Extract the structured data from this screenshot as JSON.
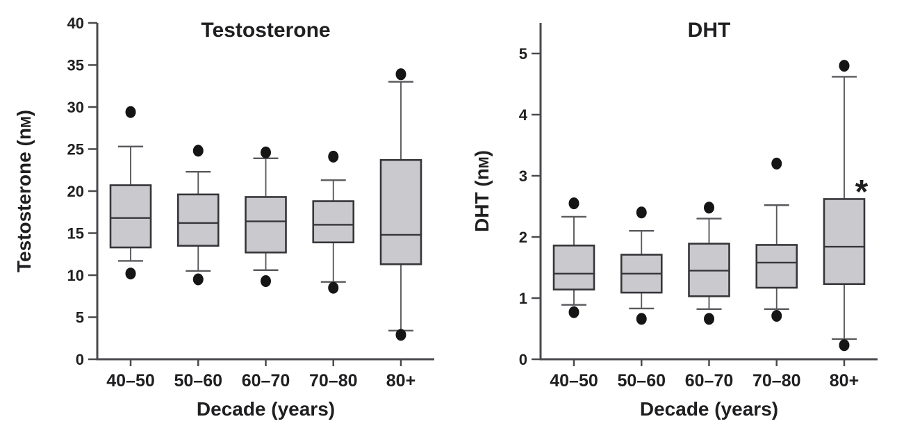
{
  "figure": {
    "background": "#ffffff"
  },
  "colors": {
    "box_fill": "#cacace",
    "box_stroke": "#35353a",
    "median_stroke": "#35353a",
    "whisker_stroke": "#5a5a5e",
    "axis_stroke": "#4a4a4e",
    "dot_fill": "#151515",
    "text": "#1f1f21"
  },
  "chart_data": [
    {
      "type": "boxplot",
      "title": "Testosterone",
      "ylabel": "Testosterone (nM)",
      "ylabel_unit_smallcap": true,
      "xlabel": "Decade (years)",
      "categories": [
        "40–50",
        "50–60",
        "60–70",
        "70–80",
        "80+"
      ],
      "ylim": [
        0,
        40
      ],
      "yticks": [
        0,
        5,
        10,
        15,
        20,
        25,
        30,
        35,
        40
      ],
      "grid": false,
      "boxes": [
        {
          "category": "40–50",
          "upper_outlier": 29.4,
          "whisker_high": 25.3,
          "q3": 20.7,
          "median": 16.8,
          "q1": 13.3,
          "whisker_low": 11.7,
          "lower_outlier": 10.2
        },
        {
          "category": "50–60",
          "upper_outlier": 24.8,
          "whisker_high": 22.3,
          "q3": 19.6,
          "median": 16.2,
          "q1": 13.5,
          "whisker_low": 10.5,
          "lower_outlier": 9.5
        },
        {
          "category": "60–70",
          "upper_outlier": 24.6,
          "whisker_high": 23.9,
          "q3": 19.3,
          "median": 16.4,
          "q1": 12.7,
          "whisker_low": 10.6,
          "lower_outlier": 9.3
        },
        {
          "category": "70–80",
          "upper_outlier": 24.1,
          "whisker_high": 21.3,
          "q3": 18.8,
          "median": 16.0,
          "q1": 13.9,
          "whisker_low": 9.2,
          "lower_outlier": 8.5
        },
        {
          "category": "80+",
          "upper_outlier": 33.9,
          "whisker_high": 33.0,
          "q3": 23.7,
          "median": 14.8,
          "q1": 11.3,
          "whisker_low": 3.4,
          "lower_outlier": 2.9
        }
      ],
      "annotations": []
    },
    {
      "type": "boxplot",
      "title": "DHT",
      "ylabel": "DHT (nM)",
      "ylabel_unit_smallcap": true,
      "xlabel": "Decade (years)",
      "categories": [
        "40–50",
        "50–60",
        "60–70",
        "70–80",
        "80+"
      ],
      "ylim": [
        0,
        5.5
      ],
      "yticks": [
        0,
        1,
        2,
        3,
        4,
        5
      ],
      "grid": false,
      "boxes": [
        {
          "category": "40–50",
          "upper_outlier": 2.55,
          "whisker_high": 2.33,
          "q3": 1.86,
          "median": 1.4,
          "q1": 1.14,
          "whisker_low": 0.89,
          "lower_outlier": 0.77
        },
        {
          "category": "50–60",
          "upper_outlier": 2.4,
          "whisker_high": 2.1,
          "q3": 1.71,
          "median": 1.4,
          "q1": 1.09,
          "whisker_low": 0.83,
          "lower_outlier": 0.66
        },
        {
          "category": "60–70",
          "upper_outlier": 2.48,
          "whisker_high": 2.3,
          "q3": 1.89,
          "median": 1.45,
          "q1": 1.03,
          "whisker_low": 0.82,
          "lower_outlier": 0.66
        },
        {
          "category": "70–80",
          "upper_outlier": 3.2,
          "whisker_high": 2.52,
          "q3": 1.87,
          "median": 1.58,
          "q1": 1.17,
          "whisker_low": 0.82,
          "lower_outlier": 0.71
        },
        {
          "category": "80+",
          "upper_outlier": 4.8,
          "whisker_high": 4.62,
          "q3": 2.62,
          "median": 1.84,
          "q1": 1.23,
          "whisker_low": 0.33,
          "lower_outlier": 0.23
        }
      ],
      "annotations": [
        {
          "text": "*",
          "category_index": 4,
          "value": 2.83,
          "dx": 25
        }
      ]
    }
  ]
}
